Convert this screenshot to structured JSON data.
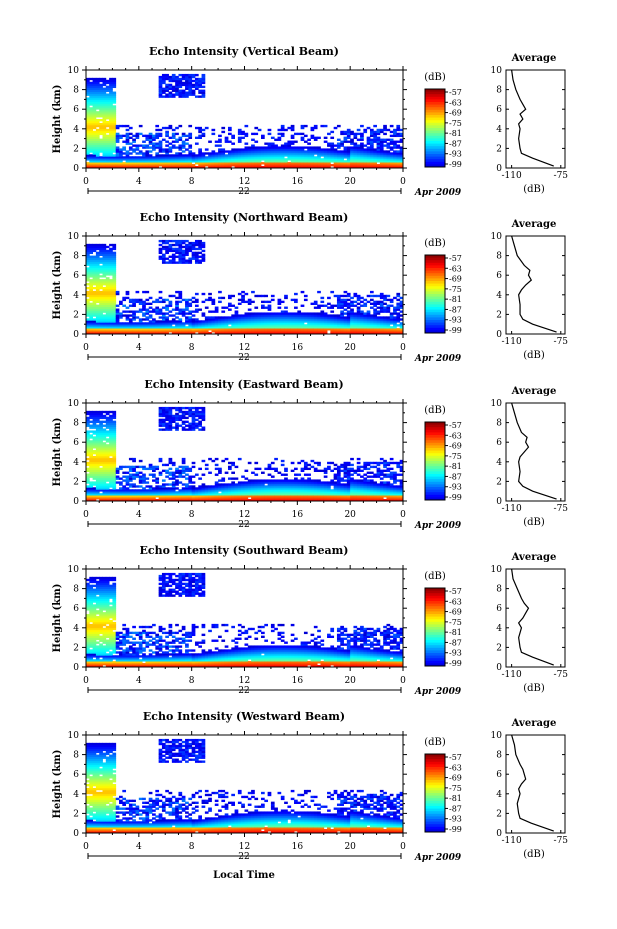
{
  "figure": {
    "xlabel": "Local Time",
    "date_label": "22",
    "month_year_label": "Apr 2009",
    "colorbar_unit": "(dB)",
    "colorbar_ticks": [
      "-57",
      "-63",
      "-69",
      "-75",
      "-81",
      "-87",
      "-93",
      "-99"
    ],
    "avg_title": "Average",
    "avg_xlabel": "(dB)",
    "avg_xticks": [
      "-110",
      "-75"
    ],
    "ylabel": "Height (km)",
    "yticks": [
      "0",
      "2",
      "4",
      "6",
      "8",
      "10"
    ],
    "xticks": [
      "0",
      "4",
      "8",
      "12",
      "16",
      "20",
      "0"
    ]
  },
  "chart_data": [
    {
      "type": "heatmap",
      "title": "Echo Intensity (Vertical Beam)",
      "xlabel": "",
      "ylabel": "Height (km)",
      "xlim": [
        0,
        24
      ],
      "ylim": [
        0,
        10
      ],
      "clim": [
        -99,
        -57
      ],
      "profile": {
        "heights": [
          0.2,
          1,
          1.5,
          2,
          3,
          4,
          4.5,
          5,
          5.5,
          6,
          6.5,
          7,
          8,
          9,
          10
        ],
        "values": [
          -80,
          -95,
          -103,
          -104,
          -105,
          -104,
          -105,
          -102,
          -104,
          -100,
          -102,
          -104,
          -107,
          -109,
          -110
        ]
      }
    },
    {
      "type": "heatmap",
      "title": "Echo Intensity (Northward Beam)",
      "xlabel": "",
      "ylabel": "Height (km)",
      "xlim": [
        0,
        24
      ],
      "ylim": [
        0,
        10
      ],
      "clim": [
        -99,
        -57
      ],
      "profile": {
        "heights": [
          0.2,
          1,
          1.5,
          2,
          3,
          4,
          4.5,
          5,
          5.5,
          6,
          6.5,
          7,
          8,
          9,
          10
        ],
        "values": [
          -78,
          -95,
          -102,
          -104,
          -104,
          -105,
          -103,
          -100,
          -96,
          -98,
          -97,
          -101,
          -106,
          -108,
          -110
        ]
      }
    },
    {
      "type": "heatmap",
      "title": "Echo Intensity (Eastward Beam)",
      "xlabel": "",
      "ylabel": "Height (km)",
      "xlim": [
        0,
        24
      ],
      "ylim": [
        0,
        10
      ],
      "clim": [
        -99,
        -57
      ],
      "profile": {
        "heights": [
          0.2,
          1,
          1.5,
          2,
          3,
          4,
          4.5,
          5,
          5.5,
          6,
          6.5,
          7,
          8,
          9,
          10
        ],
        "values": [
          -78,
          -95,
          -102,
          -105,
          -104,
          -105,
          -104,
          -101,
          -98,
          -100,
          -99,
          -103,
          -106,
          -108,
          -110
        ]
      }
    },
    {
      "type": "heatmap",
      "title": "Echo Intensity (Southward Beam)",
      "xlabel": "",
      "ylabel": "Height (km)",
      "xlim": [
        0,
        24
      ],
      "ylim": [
        0,
        10
      ],
      "clim": [
        -99,
        -57
      ],
      "profile": {
        "heights": [
          0.2,
          1,
          1.5,
          2,
          3,
          4,
          4.5,
          5,
          5.5,
          6,
          6.5,
          7,
          8,
          9,
          10
        ],
        "values": [
          -80,
          -95,
          -103,
          -104,
          -105,
          -103,
          -105,
          -102,
          -100,
          -98,
          -101,
          -103,
          -106,
          -109,
          -110
        ]
      }
    },
    {
      "type": "heatmap",
      "title": "Echo Intensity (Westward Beam)",
      "xlabel": "",
      "ylabel": "Height (km)",
      "xlim": [
        0,
        24
      ],
      "ylim": [
        0,
        10
      ],
      "clim": [
        -99,
        -57
      ],
      "profile": {
        "heights": [
          0.2,
          1,
          1.5,
          2,
          3,
          4,
          4.5,
          5,
          5.5,
          6,
          6.5,
          7,
          8,
          9,
          10
        ],
        "values": [
          -80,
          -96,
          -104,
          -105,
          -106,
          -104,
          -105,
          -103,
          -100,
          -101,
          -102,
          -104,
          -107,
          -108,
          -110
        ]
      }
    }
  ]
}
